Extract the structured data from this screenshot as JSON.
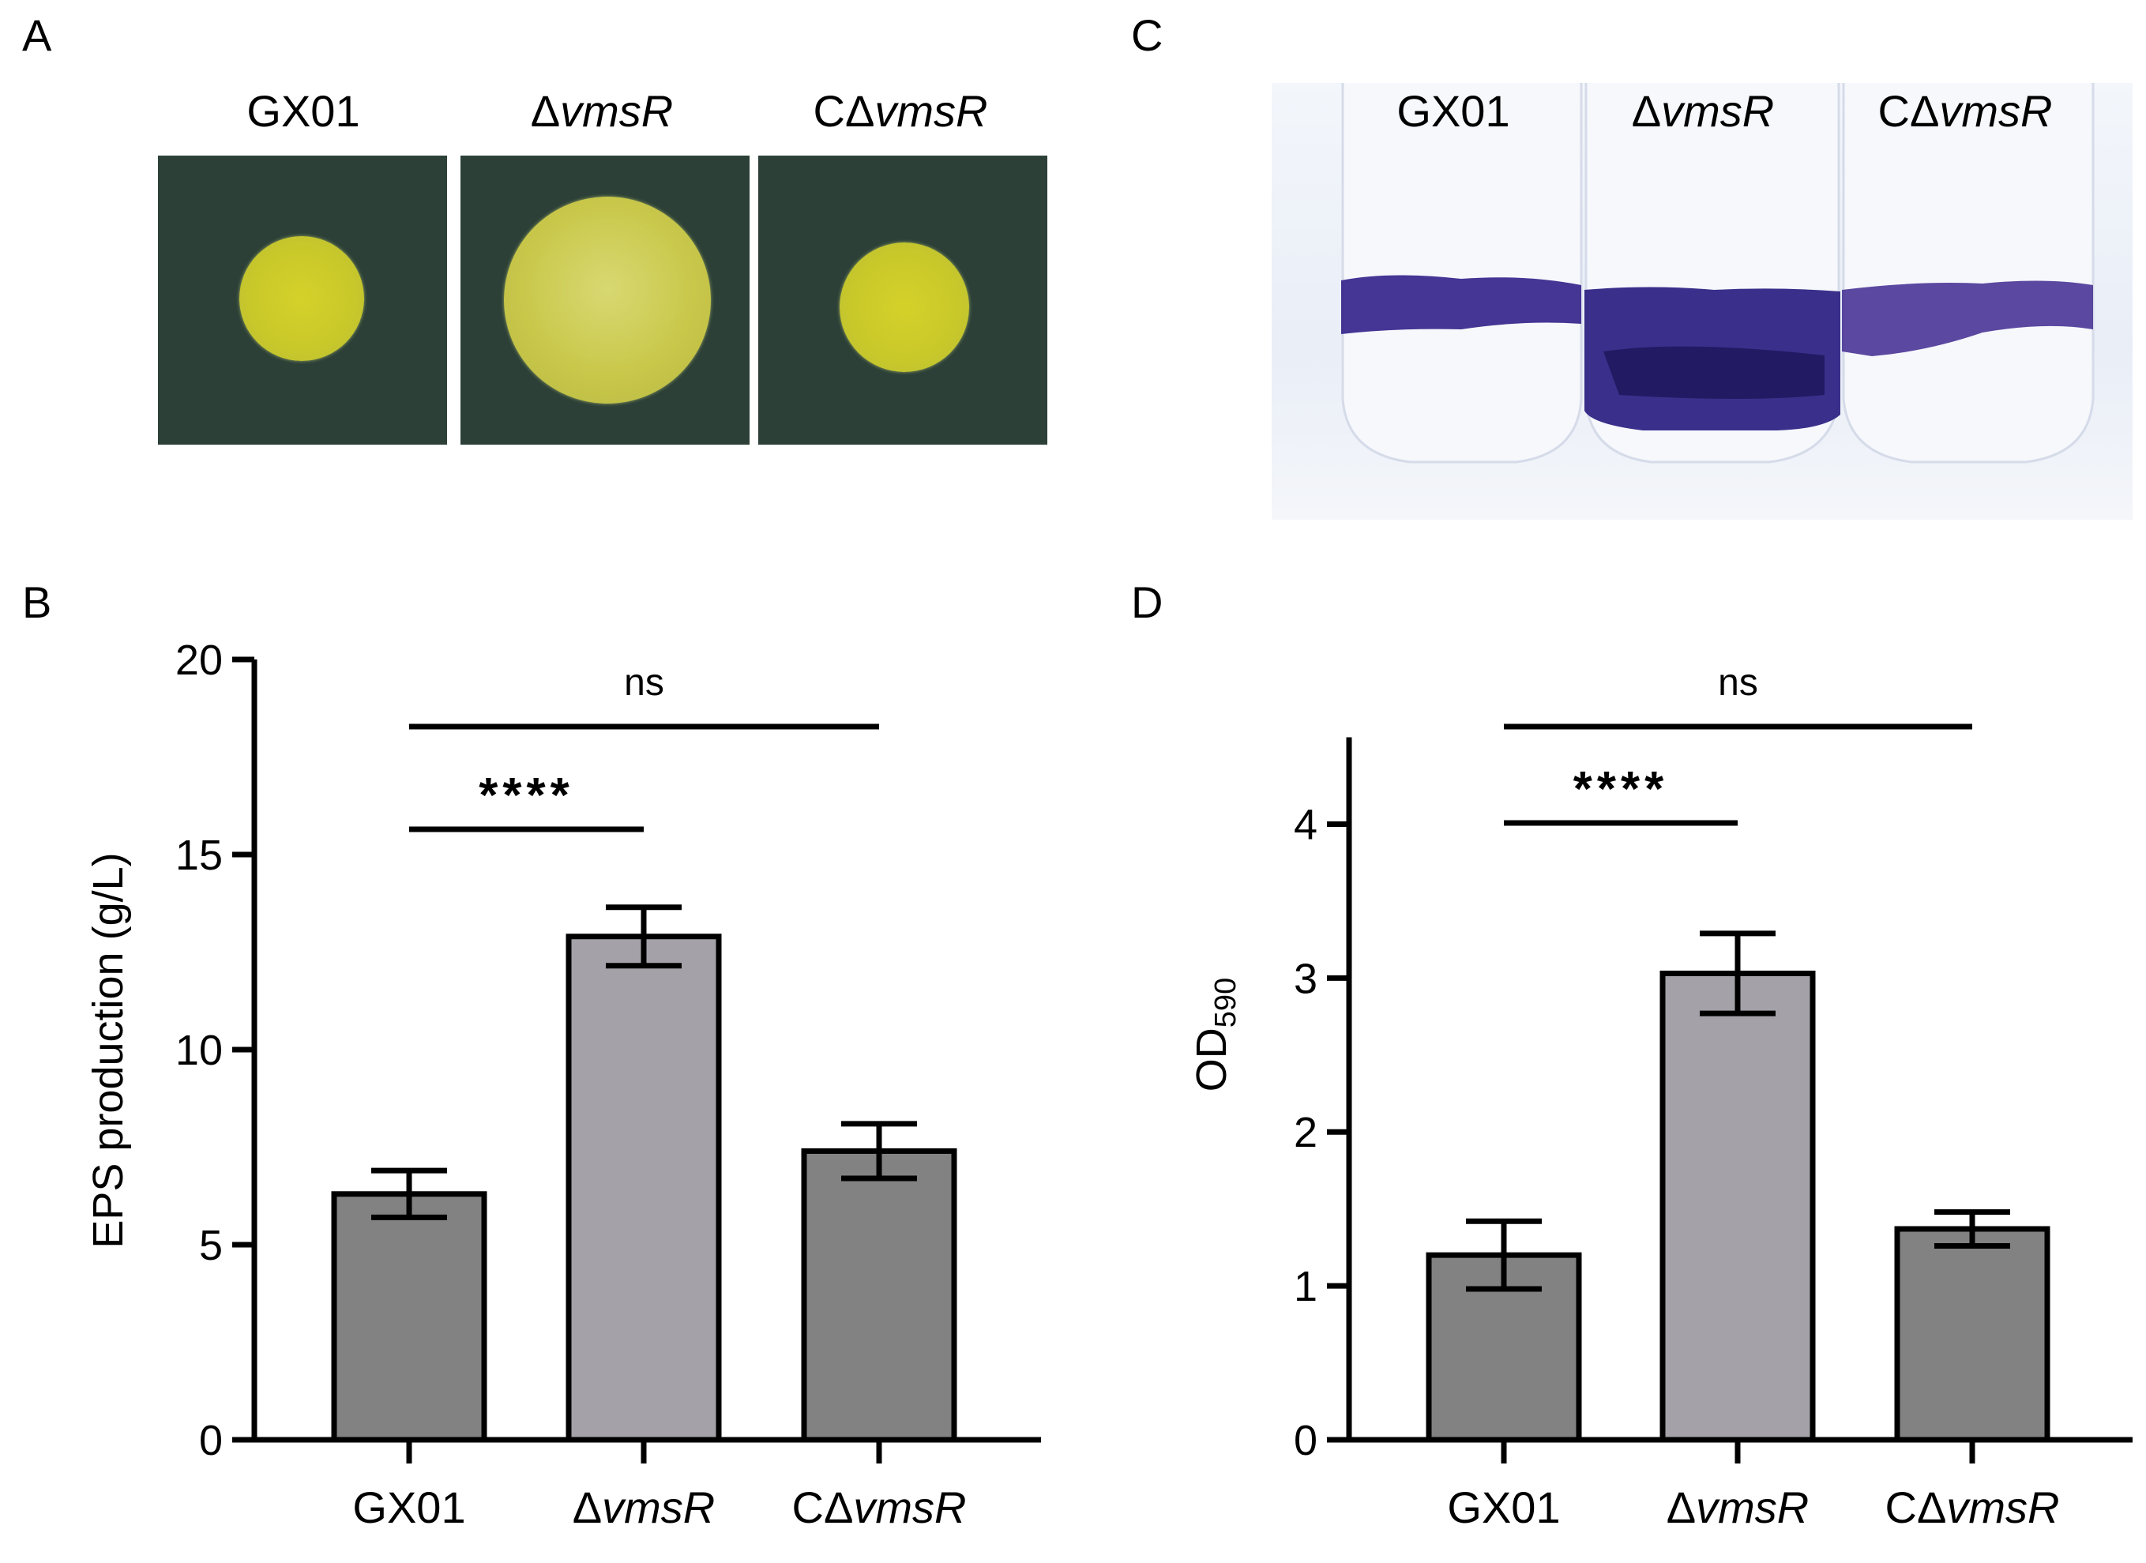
{
  "panels": {
    "a": {
      "letter": "A"
    },
    "b": {
      "letter": "B"
    },
    "c": {
      "letter": "C"
    },
    "d": {
      "letter": "D"
    }
  },
  "strains": [
    {
      "prefix": "",
      "italic": "",
      "text": "GX01"
    },
    {
      "prefix": "Δ",
      "italic": "vmsR",
      "text": ""
    },
    {
      "prefix": "CΔ",
      "italic": "vmsR",
      "text": ""
    }
  ],
  "colors": {
    "bar_dark": "#838283",
    "bar_light": "#a4a2a8",
    "plate_bg": "#2c4038",
    "colony": "#d2cf2b",
    "stain": "#3b2a8e"
  },
  "chart_data": [
    {
      "id": "B",
      "type": "bar",
      "categories": [
        "GX01",
        "ΔvmsR",
        "CΔvmsR"
      ],
      "values": [
        6.3,
        12.9,
        7.4
      ],
      "errors": [
        0.6,
        0.75,
        0.7
      ],
      "ylabel": "EPS production (g/L)",
      "ylim": [
        0,
        20
      ],
      "yticks": [
        0,
        5,
        10,
        15,
        20
      ],
      "significance": [
        {
          "from": 0,
          "to": 1,
          "label": "****"
        },
        {
          "from": 0,
          "to": 2,
          "label": "ns"
        }
      ]
    },
    {
      "id": "D",
      "type": "bar",
      "categories": [
        "GX01",
        "ΔvmsR",
        "CΔvmsR"
      ],
      "values": [
        1.2,
        3.03,
        1.37
      ],
      "errors": [
        0.22,
        0.26,
        0.11
      ],
      "ylabel_main": "OD",
      "ylabel_sub": "590",
      "ylim": [
        0,
        4.5
      ],
      "yticks": [
        0,
        1,
        2,
        3,
        4
      ],
      "significance": [
        {
          "from": 0,
          "to": 1,
          "label": "****"
        },
        {
          "from": 0,
          "to": 2,
          "label": "ns"
        }
      ]
    }
  ]
}
